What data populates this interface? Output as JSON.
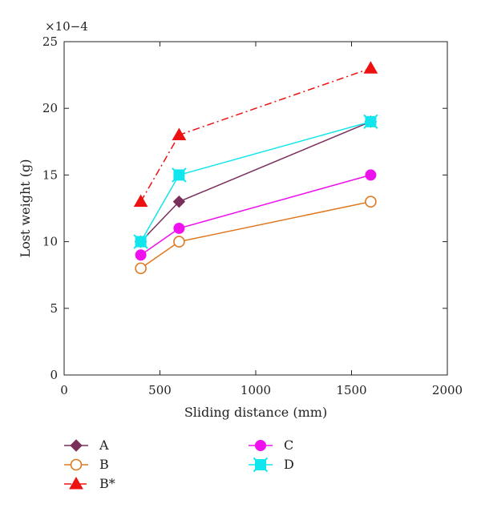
{
  "chart_data": {
    "type": "line",
    "xlabel": "Sliding distance (mm)",
    "ylabel": "Lost weight (g)",
    "y_multiplier": "×10−4",
    "xlim": [
      0,
      2000
    ],
    "ylim": [
      0,
      25
    ],
    "x_ticks": [
      0,
      500,
      1000,
      1500,
      2000
    ],
    "y_ticks": [
      0,
      5,
      10,
      15,
      20,
      25
    ],
    "grid": false,
    "legend_position": "bottom",
    "x": [
      400,
      600,
      1600
    ],
    "series": [
      {
        "name": "A",
        "values": [
          10,
          13,
          19
        ],
        "color": "#7a2f5b",
        "marker": "diamond",
        "filled": true,
        "dash": "solid"
      },
      {
        "name": "B",
        "values": [
          8,
          10,
          13
        ],
        "color": "#e07820",
        "marker": "circle",
        "filled": false,
        "dash": "solid"
      },
      {
        "name": "B*",
        "values": [
          13,
          18,
          23
        ],
        "color": "#ee1111",
        "marker": "triangle",
        "filled": true,
        "dash": "dashdot"
      },
      {
        "name": "C",
        "values": [
          9,
          11,
          15
        ],
        "color": "#ee11ee",
        "marker": "circle",
        "filled": true,
        "dash": "solid"
      },
      {
        "name": "D",
        "values": [
          10,
          15,
          19
        ],
        "color": "#11e6ee",
        "marker": "square",
        "filled": true,
        "dash": "solid"
      }
    ]
  }
}
